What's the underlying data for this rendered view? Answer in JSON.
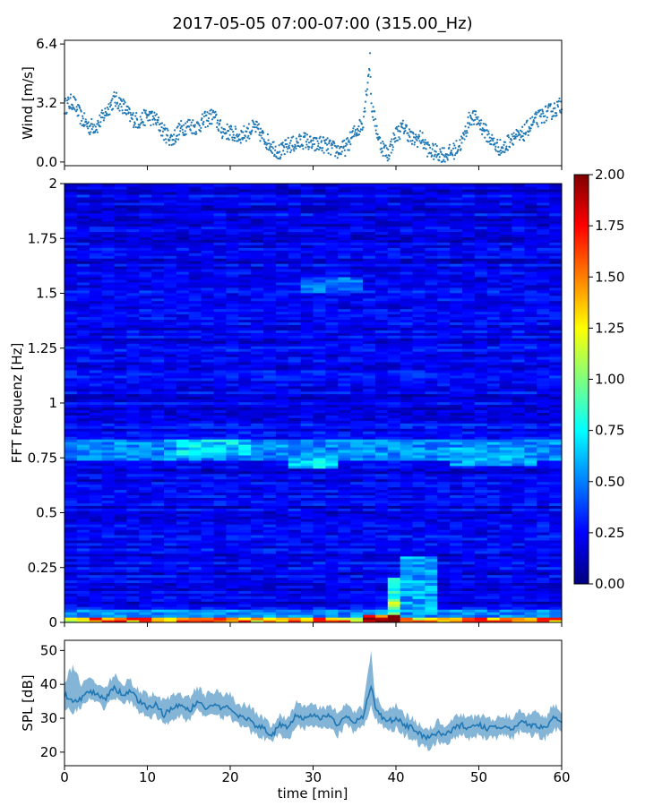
{
  "title": "2017-05-05 07:00-07:00 (315.00_Hz)",
  "colors": {
    "wind": "#1f77b4",
    "spl": "#1f77b4",
    "colormap": [
      "#00007f",
      "#0000ff",
      "#007fff",
      "#00ffff",
      "#7fff7f",
      "#ffff00",
      "#ff7f00",
      "#ff0000",
      "#7f0000"
    ]
  },
  "chart_data": [
    {
      "type": "scatter",
      "ylabel": "Wind [m/s]",
      "xlim": [
        0,
        60
      ],
      "ylim": [
        -0.2,
        6.6
      ],
      "yticks": [
        "0.0",
        "3.2",
        "6.4"
      ],
      "ytick_values": [
        0,
        3.2,
        6.4
      ],
      "x_ticks_labeled": false,
      "grid": false,
      "series": [
        {
          "x": [
            0,
            1,
            2,
            3,
            4,
            5,
            6,
            7,
            8,
            9,
            10,
            11,
            12,
            13,
            14,
            15,
            16,
            17,
            18,
            19,
            20,
            21,
            22,
            23,
            24,
            25,
            26,
            27,
            28,
            29,
            30,
            31,
            32,
            33,
            34,
            35,
            36,
            36.9,
            37,
            38,
            39,
            40,
            41,
            42,
            43,
            44,
            45,
            46,
            47,
            48,
            49,
            50,
            51,
            52,
            53,
            54,
            55,
            56,
            57,
            58,
            59,
            60
          ],
          "values": [
            3.0,
            3.3,
            2.4,
            1.9,
            2.0,
            2.7,
            3.4,
            3.1,
            2.4,
            2.2,
            2.5,
            2.3,
            1.6,
            1.2,
            1.8,
            2.0,
            1.9,
            2.3,
            2.5,
            1.7,
            1.6,
            1.4,
            1.6,
            1.9,
            1.3,
            0.9,
            0.5,
            0.9,
            1.0,
            1.2,
            0.9,
            1.0,
            0.8,
            0.6,
            0.8,
            1.6,
            2.1,
            5.6,
            3.2,
            1.1,
            0.4,
            1.5,
            1.9,
            1.2,
            1.3,
            0.6,
            0.5,
            0.4,
            0.6,
            1.1,
            2.5,
            2.2,
            1.5,
            0.9,
            0.7,
            1.4,
            1.3,
            1.9,
            2.3,
            2.6,
            2.8,
            3.1
          ]
        }
      ]
    },
    {
      "type": "heatmap",
      "ylabel": "FFT Frequenz [Hz]",
      "xlim": [
        0,
        60
      ],
      "ylim": [
        0,
        2
      ],
      "yticks": [
        "0",
        "0.25",
        "0.5",
        "0.75",
        "1",
        "1.25",
        "1.5",
        "1.75",
        "2"
      ],
      "ytick_values": [
        0,
        0.25,
        0.5,
        0.75,
        1,
        1.25,
        1.5,
        1.75,
        2
      ],
      "x_ticks_labeled": false,
      "colorbar": {
        "vmin": 0,
        "vmax": 2,
        "ticks": [
          "0.00",
          "0.25",
          "0.50",
          "0.75",
          "1.00",
          "1.25",
          "1.50",
          "1.75",
          "2.00"
        ],
        "tick_values": [
          0,
          0.25,
          0.5,
          0.75,
          1,
          1.25,
          1.5,
          1.75,
          2
        ]
      },
      "background_level": 0.22,
      "features": [
        {
          "x": [
            0,
            60
          ],
          "y": [
            0,
            0.02
          ],
          "value": 1.5
        },
        {
          "x": [
            36,
            40
          ],
          "y": [
            0,
            0.04
          ],
          "value": 2.0
        },
        {
          "x": [
            39,
            40
          ],
          "y": [
            0,
            0.2
          ],
          "value": 1.0
        },
        {
          "x": [
            41,
            45
          ],
          "y": [
            0.05,
            0.3
          ],
          "value": 0.6
        },
        {
          "x": [
            0,
            60
          ],
          "y": [
            0.02,
            0.06
          ],
          "value": 0.55
        },
        {
          "x": [
            0,
            60
          ],
          "y": [
            0.74,
            0.84
          ],
          "value": 0.55
        },
        {
          "x": [
            13,
            22
          ],
          "y": [
            0.76,
            0.84
          ],
          "value": 0.7
        },
        {
          "x": [
            27,
            33
          ],
          "y": [
            0.7,
            0.76
          ],
          "value": 0.7
        },
        {
          "x": [
            46,
            57
          ],
          "y": [
            0.72,
            0.8
          ],
          "value": 0.6
        },
        {
          "x": [
            29,
            36
          ],
          "y": [
            1.5,
            1.57
          ],
          "value": 0.5
        }
      ]
    },
    {
      "type": "area",
      "xlabel": "time [min]",
      "ylabel": "SPL [dB]",
      "xlim": [
        0,
        60
      ],
      "ylim": [
        16,
        53
      ],
      "xticks": [
        "0",
        "10",
        "20",
        "30",
        "40",
        "50",
        "60"
      ],
      "xtick_values": [
        0,
        10,
        20,
        30,
        40,
        50,
        60
      ],
      "yticks": [
        "20",
        "30",
        "40",
        "50"
      ],
      "ytick_values": [
        20,
        30,
        40,
        50
      ],
      "grid": false,
      "series": [
        {
          "x": [
            0,
            1,
            2,
            3,
            4,
            5,
            6,
            7,
            8,
            9,
            10,
            11,
            12,
            13,
            14,
            15,
            16,
            17,
            18,
            19,
            20,
            21,
            22,
            23,
            24,
            25,
            26,
            27,
            28,
            29,
            30,
            31,
            32,
            33,
            34,
            35,
            36,
            37,
            37.5,
            38,
            39,
            40,
            41,
            42,
            43,
            44,
            45,
            46,
            47,
            48,
            49,
            50,
            51,
            52,
            53,
            54,
            55,
            56,
            57,
            58,
            59,
            60
          ],
          "values": [
            37,
            35,
            36,
            38,
            37,
            36,
            39,
            37,
            38,
            35,
            33,
            34,
            31,
            33,
            34,
            32,
            35,
            33,
            34,
            33,
            33,
            31,
            30,
            28,
            27,
            25,
            28,
            27,
            31,
            30,
            31,
            30,
            31,
            28,
            31,
            29,
            30,
            40,
            33,
            31,
            29,
            30,
            28,
            27,
            25,
            24,
            26,
            25,
            27,
            28,
            27,
            28,
            27,
            27,
            28,
            27,
            29,
            28,
            28,
            27,
            30,
            29
          ],
          "low": [
            33,
            32,
            33,
            35,
            34,
            33,
            36,
            34,
            35,
            32,
            30,
            31,
            28,
            30,
            31,
            29,
            32,
            30,
            31,
            30,
            30,
            28,
            27,
            25,
            24,
            23,
            25,
            24,
            28,
            27,
            28,
            27,
            28,
            25,
            28,
            26,
            27,
            33,
            30,
            28,
            26,
            27,
            25,
            24,
            22,
            21,
            23,
            22,
            24,
            25,
            24,
            25,
            24,
            24,
            25,
            24,
            26,
            25,
            25,
            24,
            27,
            26
          ],
          "high": [
            41,
            45,
            40,
            42,
            40,
            39,
            43,
            40,
            41,
            38,
            37,
            37,
            35,
            37,
            37,
            36,
            39,
            37,
            38,
            37,
            37,
            34,
            34,
            32,
            30,
            28,
            31,
            30,
            35,
            33,
            34,
            33,
            34,
            31,
            34,
            32,
            33,
            49,
            37,
            35,
            32,
            34,
            31,
            30,
            28,
            27,
            29,
            28,
            30,
            31,
            30,
            31,
            30,
            30,
            31,
            30,
            32,
            31,
            32,
            30,
            34,
            32
          ]
        }
      ]
    }
  ]
}
